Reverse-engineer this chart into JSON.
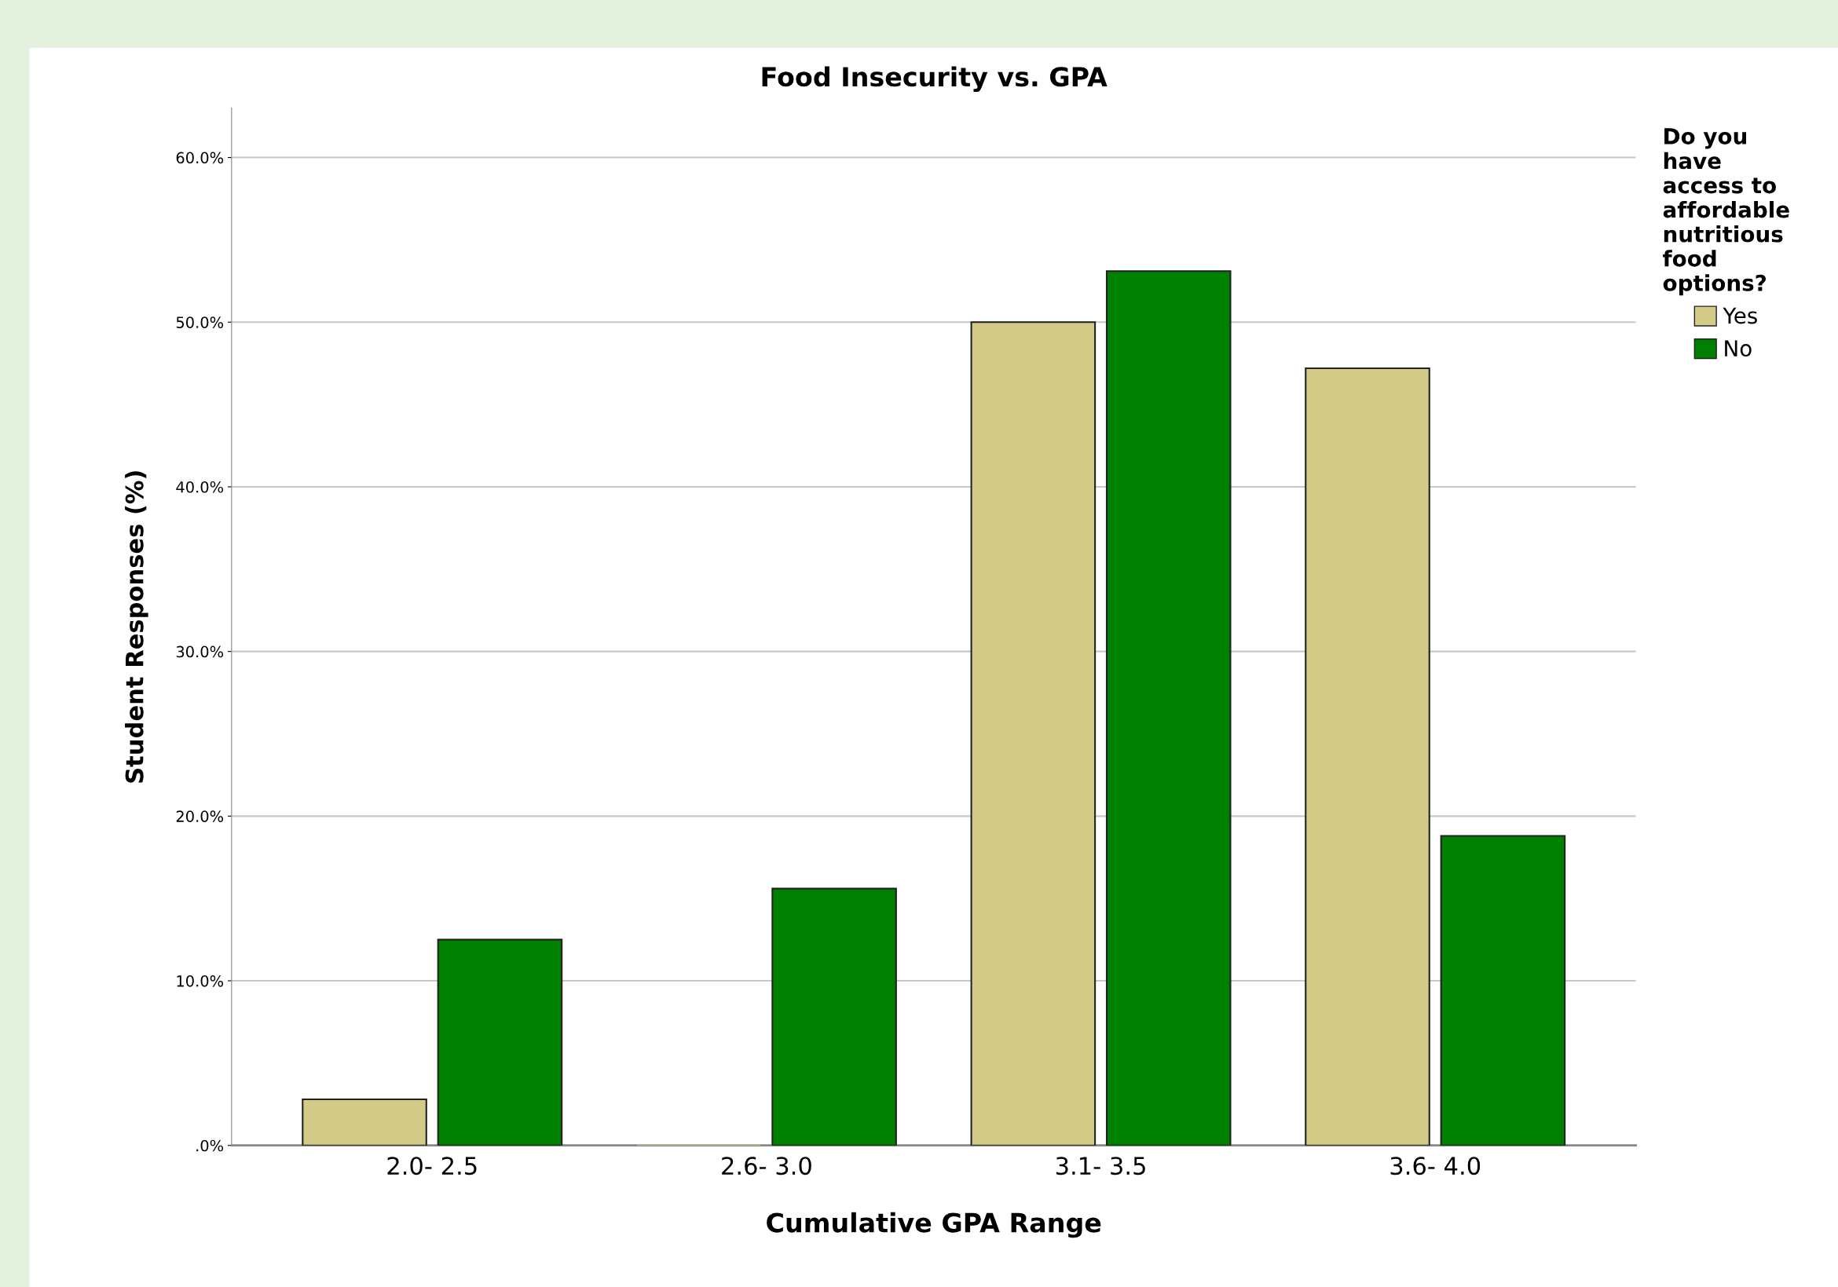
{
  "chart_data": {
    "type": "bar",
    "title": "Food Insecurity vs. GPA",
    "xlabel": "Cumulative GPA Range",
    "ylabel": "Student Responses (%)",
    "legend_title": "Do you have access to affordable nutritious food options?",
    "categories": [
      "2.0- 2.5",
      "2.6- 3.0",
      "3.1- 3.5",
      "3.6- 4.0"
    ],
    "series": [
      {
        "name": "Yes",
        "color": "#d3cb87",
        "values": [
          2.8,
          0,
          50.0,
          47.2
        ]
      },
      {
        "name": "No",
        "color": "#008000",
        "values": [
          12.5,
          15.6,
          53.1,
          18.8
        ]
      }
    ],
    "ylim": [
      0,
      63
    ],
    "yticks": [
      {
        "value": 0,
        "label": ".0%"
      },
      {
        "value": 10,
        "label": "10.0%"
      },
      {
        "value": 20,
        "label": "20.0%"
      },
      {
        "value": 30,
        "label": "30.0%"
      },
      {
        "value": 40,
        "label": "40.0%"
      },
      {
        "value": 50,
        "label": "50.0%"
      },
      {
        "value": 60,
        "label": "60.0%"
      }
    ],
    "grid": "y",
    "legend": "top right"
  }
}
